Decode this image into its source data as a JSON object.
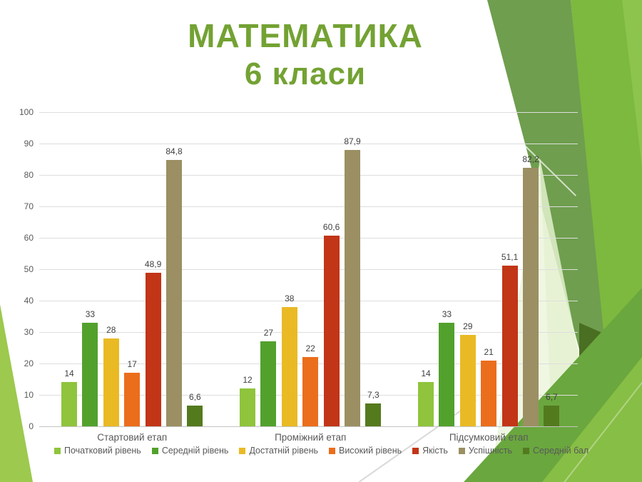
{
  "slide": {
    "title_line1": "МАТЕМАТИКА",
    "title_line2": "6 класи",
    "title_color": "#73a233"
  },
  "chart_data": {
    "type": "bar",
    "title": "МАТЕМАТИКА 6 класи",
    "categories": [
      "Стартовий етап",
      "Проміжний етап",
      "Підсумковий етап"
    ],
    "series": [
      {
        "name": "Початковий рівень",
        "color": "#8fc43c",
        "values": [
          14,
          12,
          14
        ],
        "labels": [
          "14",
          "12",
          "14"
        ]
      },
      {
        "name": "Середній рівень",
        "color": "#52a12c",
        "values": [
          33,
          27,
          33
        ],
        "labels": [
          "33",
          "27",
          "33"
        ]
      },
      {
        "name": "Достатній рівень",
        "color": "#eaba25",
        "values": [
          28,
          38,
          29
        ],
        "labels": [
          "28",
          "38",
          "29"
        ]
      },
      {
        "name": "Високий рівень",
        "color": "#eb6e1c",
        "values": [
          17,
          22,
          21
        ],
        "labels": [
          "17",
          "22",
          "21"
        ]
      },
      {
        "name": "Якість",
        "color": "#c23517",
        "values": [
          48.9,
          60.6,
          51.1
        ],
        "labels": [
          "48,9",
          "60,6",
          "51,1"
        ]
      },
      {
        "name": "Успішність",
        "color": "#9b8f63",
        "values": [
          84.8,
          87.9,
          82.2
        ],
        "labels": [
          "84,8",
          "87,9",
          "82,2"
        ]
      },
      {
        "name": "Середній бал",
        "color": "#547a1e",
        "values": [
          6.6,
          7.3,
          6.7
        ],
        "labels": [
          "6,6",
          "7,3",
          "6,7"
        ]
      }
    ],
    "xlabel": "",
    "ylabel": "",
    "ylim": [
      0,
      100
    ],
    "ytick_step": 10,
    "ytick_labels": [
      "0",
      "10",
      "20",
      "30",
      "40",
      "50",
      "60",
      "70",
      "80",
      "90",
      "100"
    ],
    "grid": true,
    "legend_position": "bottom",
    "value_label_color": "#404040",
    "axis_text_color": "#595959"
  },
  "decor": {
    "left_wedge": "#9cc94e",
    "sage_band": "#6f9e4e",
    "bright_band": "#7db93e",
    "top_light": "#8cc44d",
    "pale_facet_1": "rgba(227,240,206,0.85)",
    "pale_facet_2": "rgba(241,248,229,0.75)",
    "dark_kite": "#4a6e22",
    "big_triangle": "#6aa73e",
    "corner_bright": "#87be45"
  }
}
